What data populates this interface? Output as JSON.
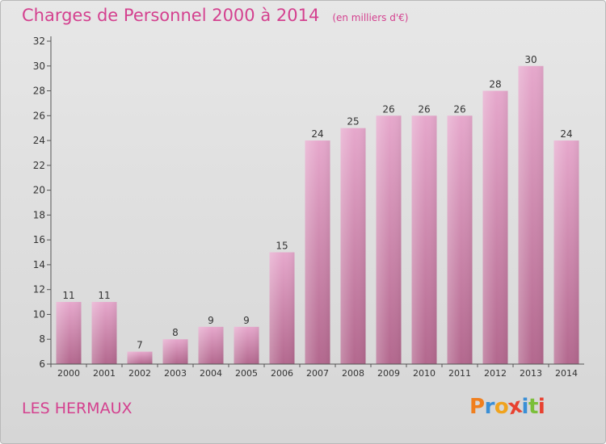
{
  "header": {
    "title": "Charges de Personnel 2000 à 2014",
    "unit": "(en milliers d'€)"
  },
  "footer": {
    "place": "LES HERMAUX",
    "brand": "Proxiti"
  },
  "colors": {
    "bar_light": "#e6a8cc",
    "bar_dark": "#b3688e",
    "title": "#d4418f",
    "brand_letters": [
      "#f07f1e",
      "#3a8fd6",
      "#f0a31e",
      "#e84130",
      "#3a8fd6",
      "#7bbf3a",
      "#e84130"
    ]
  },
  "chart_data": {
    "type": "bar",
    "title": "Charges de Personnel 2000 à 2014",
    "subtitle": "(en milliers d'€)",
    "categories": [
      "2000",
      "2001",
      "2002",
      "2003",
      "2004",
      "2005",
      "2006",
      "2007",
      "2008",
      "2009",
      "2010",
      "2011",
      "2012",
      "2013",
      "2014"
    ],
    "values": [
      11,
      11,
      7,
      8,
      9,
      9,
      15,
      24,
      25,
      26,
      26,
      26,
      28,
      30,
      24
    ],
    "ylim": [
      6,
      32
    ],
    "yticks": [
      6,
      8,
      10,
      12,
      14,
      16,
      18,
      20,
      22,
      24,
      26,
      28,
      30,
      32
    ],
    "grid": false,
    "data_labels": true
  }
}
